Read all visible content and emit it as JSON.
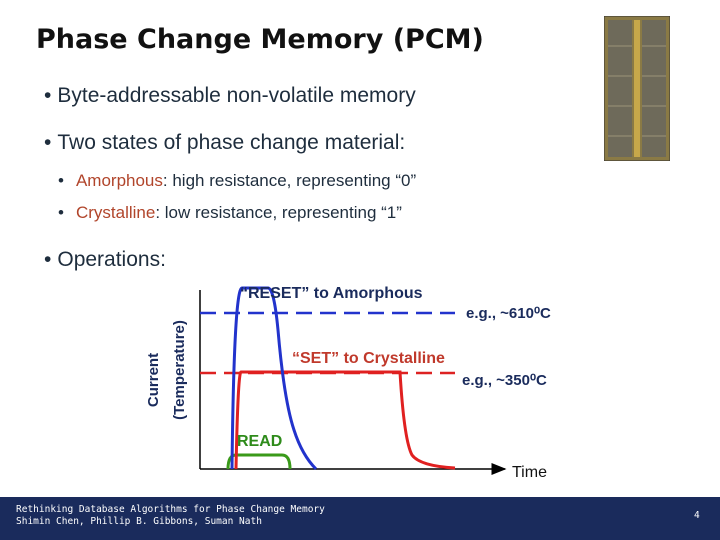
{
  "title": "Phase Change Memory (PCM)",
  "bullets": [
    "Byte-addressable non-volatile memory",
    "Two states of phase change material:"
  ],
  "sub_bullets": [
    {
      "term": "Amorphous",
      "text": ":  high resistance, representing “0”"
    },
    {
      "term": "Crystalline",
      "text": ": low resistance, representing “1”"
    }
  ],
  "operations": "Operations:",
  "diagram": {
    "y_axis_label": [
      "Current",
      "(Temperature)"
    ],
    "x_axis_label": "Time",
    "reset_label": "“RESET” to Amorphous",
    "reset_temp": "e.g., ~610⁰C",
    "set_label": "“SET” to Crystalline",
    "set_temp": "e.g., ~350⁰C",
    "read_label": "READ"
  },
  "footer": {
    "lines": [
      "Rethinking Database Algorithms for Phase Change Memory",
      "Shimin Chen, Phillip B. Gibbons, Suman Nath"
    ],
    "page": "4"
  }
}
